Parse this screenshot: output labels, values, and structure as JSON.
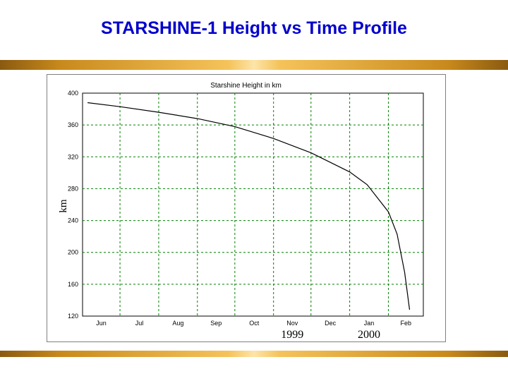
{
  "slide": {
    "title": "STARSHINE-1 Height vs Time Profile"
  },
  "colors": {
    "title": "#0000cc",
    "grid": "#008000",
    "line": "#000000",
    "band": "#c98a1c"
  },
  "chart_data": {
    "type": "line",
    "title": "Starshine Height in km",
    "ylabel": "km",
    "xlabel": "",
    "ylim": [
      120,
      400
    ],
    "yticks": [
      120,
      160,
      200,
      240,
      280,
      320,
      360,
      400
    ],
    "xticks": [
      "Jun",
      "Jul",
      "Aug",
      "Sep",
      "Oct",
      "Nov",
      "Dec",
      "Jan",
      "Feb"
    ],
    "year_labels": [
      "1999",
      "2000"
    ],
    "grid": true,
    "series": [
      {
        "x": [
          "1999-06-05",
          "1999-07-01",
          "1999-08-01",
          "1999-09-01",
          "1999-10-01",
          "1999-11-01",
          "1999-12-01",
          "2000-01-01",
          "2000-01-15",
          "2000-02-01",
          "2000-02-08",
          "2000-02-14",
          "2000-02-18"
        ],
        "values": [
          388,
          383,
          376,
          368,
          358,
          343,
          325,
          301,
          285,
          251,
          223,
          175,
          128
        ]
      }
    ]
  }
}
